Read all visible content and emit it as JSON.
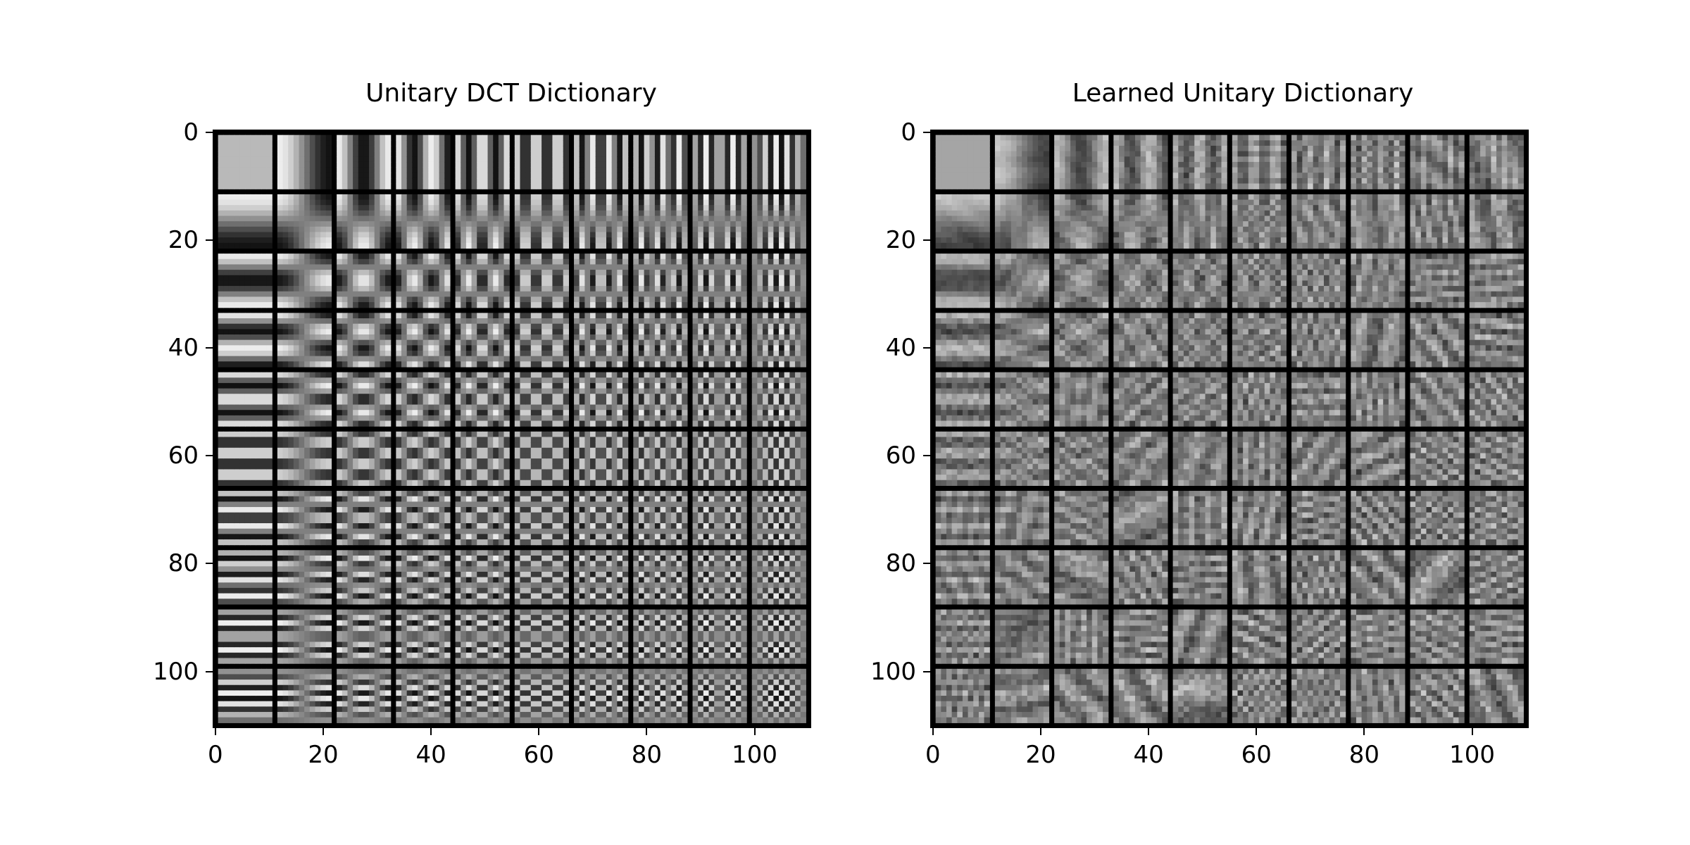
{
  "chart_data": [
    {
      "type": "heatmap",
      "title": "Unitary DCT Dictionary",
      "kind": "dct",
      "colormap": "gray",
      "grid": false,
      "atoms": {
        "rows": 10,
        "cols": 10,
        "atom_size": 10,
        "separator_width": 1
      },
      "xlim": [
        -0.5,
        110.5
      ],
      "ylim": [
        110.5,
        -0.5
      ],
      "xticks": [
        0,
        20,
        40,
        60,
        80,
        100
      ],
      "yticks": [
        0,
        20,
        40,
        60,
        80,
        100
      ],
      "xtick_labels": [
        "0",
        "20",
        "40",
        "60",
        "80",
        "100"
      ],
      "ytick_labels": [
        "0",
        "20",
        "40",
        "60",
        "80",
        "100"
      ]
    },
    {
      "type": "heatmap",
      "title": "Learned Unitary Dictionary",
      "kind": "learned",
      "colormap": "gray",
      "grid": false,
      "atoms": {
        "rows": 10,
        "cols": 10,
        "atom_size": 10,
        "separator_width": 1
      },
      "xlim": [
        -0.5,
        110.5
      ],
      "ylim": [
        110.5,
        -0.5
      ],
      "xticks": [
        0,
        20,
        40,
        60,
        80,
        100
      ],
      "yticks": [
        0,
        20,
        40,
        60,
        80,
        100
      ],
      "xtick_labels": [
        "0",
        "20",
        "40",
        "60",
        "80",
        "100"
      ],
      "ytick_labels": [
        "0",
        "20",
        "40",
        "60",
        "80",
        "100"
      ]
    }
  ]
}
